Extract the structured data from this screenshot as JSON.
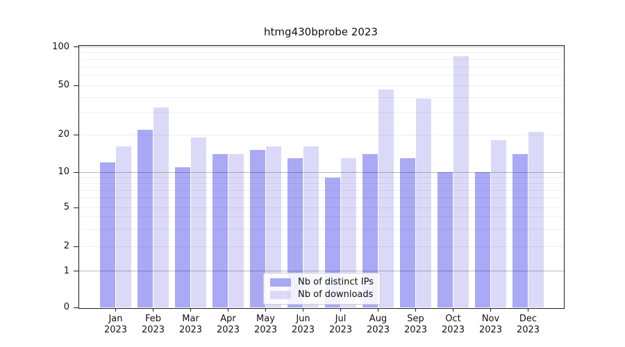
{
  "title": "htmg430bprobe 2023",
  "chart_data": {
    "type": "bar",
    "title": "htmg430bprobe 2023",
    "categories": [
      "Jan",
      "Feb",
      "Mar",
      "Apr",
      "May",
      "Jun",
      "Jul",
      "Aug",
      "Sep",
      "Oct",
      "Nov",
      "Dec"
    ],
    "category_year": "2023",
    "series": [
      {
        "name": "Nb of distinct IPs",
        "color": "#a9a9f5",
        "values": [
          12,
          22,
          11,
          14,
          15,
          13,
          9,
          14,
          13,
          10,
          10,
          14
        ]
      },
      {
        "name": "Nb of downloads",
        "color": "#dadaf8",
        "values": [
          16,
          33,
          19,
          14,
          16,
          16,
          13,
          46,
          39,
          85,
          18,
          21
        ]
      }
    ],
    "ylabel": "",
    "xlabel": "",
    "yscale": "log-like",
    "ylim": [
      0,
      100
    ],
    "y_ticks": [
      0,
      1,
      2,
      5,
      10,
      20,
      50,
      100
    ],
    "y_minor_ticks": [
      3,
      4,
      6,
      7,
      8,
      9,
      30,
      40,
      60,
      70,
      80,
      90
    ],
    "grid": true,
    "legend_position": "lower center"
  }
}
